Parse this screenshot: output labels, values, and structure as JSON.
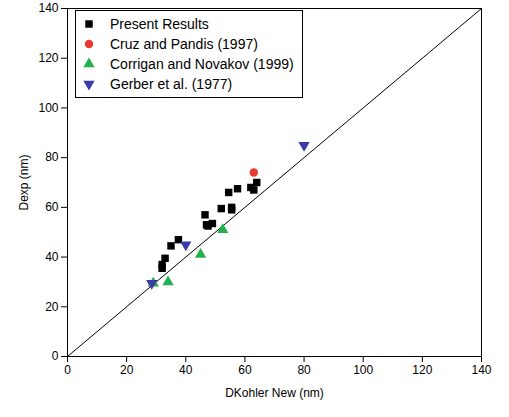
{
  "chart_data": {
    "type": "scatter",
    "x_label": "DKohler New (nm)",
    "y_label": "Dexp (nm)",
    "xlim": [
      0,
      140
    ],
    "ylim": [
      0,
      140
    ],
    "xticks": [
      0,
      20,
      40,
      60,
      80,
      100,
      120,
      140
    ],
    "yticks": [
      0,
      20,
      40,
      60,
      80,
      100,
      120,
      140
    ],
    "grid": false,
    "legend": "top-left",
    "series": [
      {
        "name": "Present Results",
        "color": "#000000",
        "marker": "square",
        "x": [
          32,
          32,
          33,
          35,
          37.5,
          46.5,
          47,
          47.5,
          49,
          52,
          54.5,
          55.5,
          55.5,
          57.5,
          62,
          63,
          64
        ],
        "values": [
          35.5,
          37,
          39.5,
          44.5,
          47,
          57,
          53,
          52.5,
          53.5,
          59.5,
          66,
          60,
          59,
          67.5,
          68,
          67,
          70
        ]
      },
      {
        "name": "Cruz and Pandis (1997)",
        "color": "#e8382f",
        "marker": "circle",
        "x": [
          63
        ],
        "values": [
          74
        ]
      },
      {
        "name": "Corrigan and Novakov (1999)",
        "color": "#22b14c",
        "marker": "triangle",
        "x": [
          29,
          34,
          45,
          52.5
        ],
        "values": [
          29.5,
          30,
          41,
          51
        ]
      },
      {
        "name": "Gerber et al. (1977)",
        "color": "#3a3aa8",
        "marker": "triangle-down",
        "x": [
          28.5,
          40,
          80
        ],
        "values": [
          29.5,
          45,
          85
        ]
      }
    ]
  }
}
